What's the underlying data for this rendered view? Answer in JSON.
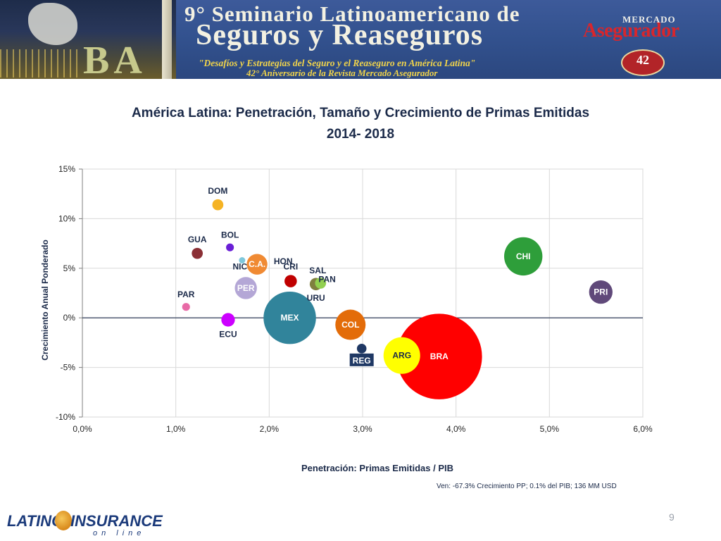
{
  "banner": {
    "title_line1": "9° Seminario Latinoamericano de",
    "title_line2": "Seguros y Reaseguros",
    "subtitle_line1": "\"Desafíos y Estrategias del Seguro y el Reaseguro en América Latina\"",
    "subtitle_line2": "42° Aniversario de la Revista Mercado Asegurador",
    "city_letters": "BA",
    "logo_top": "MERCADO",
    "logo_main": "Asegurador",
    "logo_badge": "42"
  },
  "chart_title_line1": "América Latina: Penetración, Tamaño y Crecimiento de Primas Emitidas",
  "chart_title_line2": "2014- 2018",
  "chart_data": {
    "type": "scatter",
    "bubble": true,
    "title": "América Latina: Penetración, Tamaño y Crecimiento de Primas Emitidas 2014- 2018",
    "xlabel": "Penetración: Primas Emitidas / PIB",
    "ylabel": "Crecimiento Anual Ponderado",
    "xlim": [
      0,
      6
    ],
    "ylim": [
      -10,
      15
    ],
    "x_ticks": [
      "0,0%",
      "1,0%",
      "2,0%",
      "3,0%",
      "4,0%",
      "5,0%",
      "6,0%"
    ],
    "y_ticks": [
      "15%",
      "10%",
      "5%",
      "0%",
      "-5%",
      "-10%"
    ],
    "grid": true,
    "x_unit": "% del PIB",
    "y_unit": "%",
    "points": [
      {
        "label": "DOM",
        "x": 1.45,
        "y": 11.4,
        "size": 2,
        "color": "#f5b324",
        "label_pos": "above"
      },
      {
        "label": "BOL",
        "x": 1.58,
        "y": 7.1,
        "size": 1,
        "color": "#6a1fd6",
        "label_pos": "above"
      },
      {
        "label": "GUA",
        "x": 1.23,
        "y": 6.5,
        "size": 2,
        "color": "#8b2f35",
        "label_pos": "above"
      },
      {
        "label": "NIC",
        "x": 1.71,
        "y": 5.8,
        "size": 0.5,
        "color": "#7fc8dc",
        "label_pos": "below-left"
      },
      {
        "label": "C.A.",
        "x": 1.87,
        "y": 5.4,
        "size": 7,
        "color": "#f08a33",
        "label_pos": "center"
      },
      {
        "label": "HON",
        "x": 2.15,
        "y": 5.4,
        "size": 0,
        "color": "#f08a33",
        "label_pos": "label-only"
      },
      {
        "label": "CRI",
        "x": 2.23,
        "y": 3.7,
        "size": 2.5,
        "color": "#c00000",
        "label_pos": "above"
      },
      {
        "label": "SAL",
        "x": 2.55,
        "y": 3.5,
        "size": 2,
        "color": "#92d050",
        "label_pos": "above-left"
      },
      {
        "label": "URU",
        "x": 2.5,
        "y": 3.4,
        "size": 2.5,
        "color": "#7f7f3f",
        "label_pos": "below"
      },
      {
        "label": "PAN",
        "x": 2.62,
        "y": 3.6,
        "size": 0,
        "color": "#7fc8dc",
        "label_pos": "label-only"
      },
      {
        "label": "PER",
        "x": 1.75,
        "y": 3.0,
        "size": 8,
        "color": "#b4a7d6",
        "label_pos": "center"
      },
      {
        "label": "PAR",
        "x": 1.11,
        "y": 1.1,
        "size": 1,
        "color": "#e86aa6",
        "label_pos": "above"
      },
      {
        "label": "ECU",
        "x": 1.56,
        "y": -0.2,
        "size": 3,
        "color": "#cc00ff",
        "label_pos": "below"
      },
      {
        "label": "MEX",
        "x": 2.22,
        "y": 0.0,
        "size": 45,
        "color": "#31849b",
        "label_pos": "center"
      },
      {
        "label": "COL",
        "x": 2.87,
        "y": -0.7,
        "size": 15,
        "color": "#e36c09",
        "label_pos": "center"
      },
      {
        "label": "CHI",
        "x": 4.72,
        "y": 6.2,
        "size": 24,
        "color": "#2e9e3a",
        "label_pos": "center"
      },
      {
        "label": "PRI",
        "x": 5.55,
        "y": 2.6,
        "size": 9,
        "color": "#60497a",
        "label_pos": "center"
      },
      {
        "label": "REG",
        "x": 2.99,
        "y": -3.1,
        "size": 1.5,
        "color": "#1f3864",
        "label_pos": "box-below"
      },
      {
        "label": "ARG",
        "x": 3.42,
        "y": -3.8,
        "size": 22,
        "color": "#ffff00",
        "label_pos": "center-dark"
      },
      {
        "label": "BRA",
        "x": 3.82,
        "y": -3.9,
        "size": 120,
        "color": "#ff0000",
        "label_pos": "center"
      }
    ]
  },
  "note": "Ven: -67.3% Crecimiento PP; 0.1% del PIB; 136 MM USD",
  "page_number": "9",
  "footer": {
    "logo_left": "LATINO",
    "logo_right": "INSURANCE",
    "logo_sub": "on line"
  }
}
